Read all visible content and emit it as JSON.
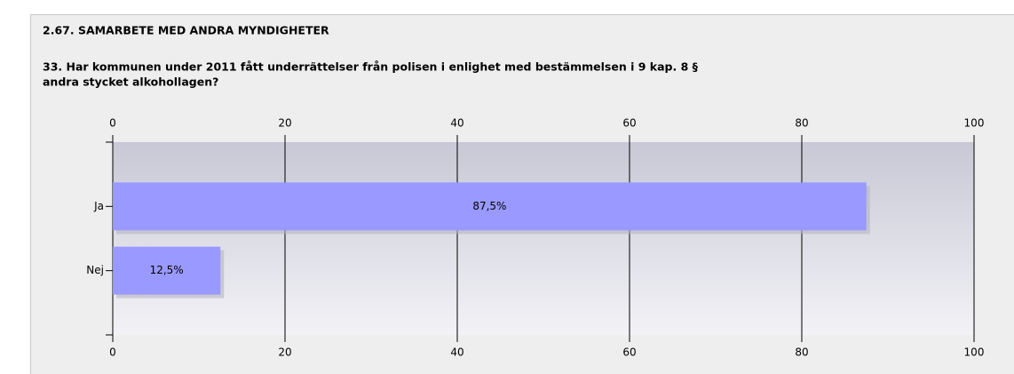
{
  "chart_data": {
    "type": "bar",
    "orientation": "horizontal",
    "title": "2.67. SAMARBETE MED ANDRA MYNDIGHETER",
    "subtitle_lines": [
      "33. Har kommunen under 2011 fått underrättelser från polisen i enlighet med bestämmelsen i 9  kap. 8  §",
      "andra stycket alkohollagen?"
    ],
    "categories": [
      "Ja",
      "Nej"
    ],
    "values": [
      87.5,
      12.5
    ],
    "value_labels": [
      "87,5%",
      "12,5%"
    ],
    "color": "#9999ff",
    "xlim": [
      0,
      100
    ],
    "xticks": [
      0,
      20,
      40,
      60,
      80,
      100
    ],
    "grid": true
  }
}
